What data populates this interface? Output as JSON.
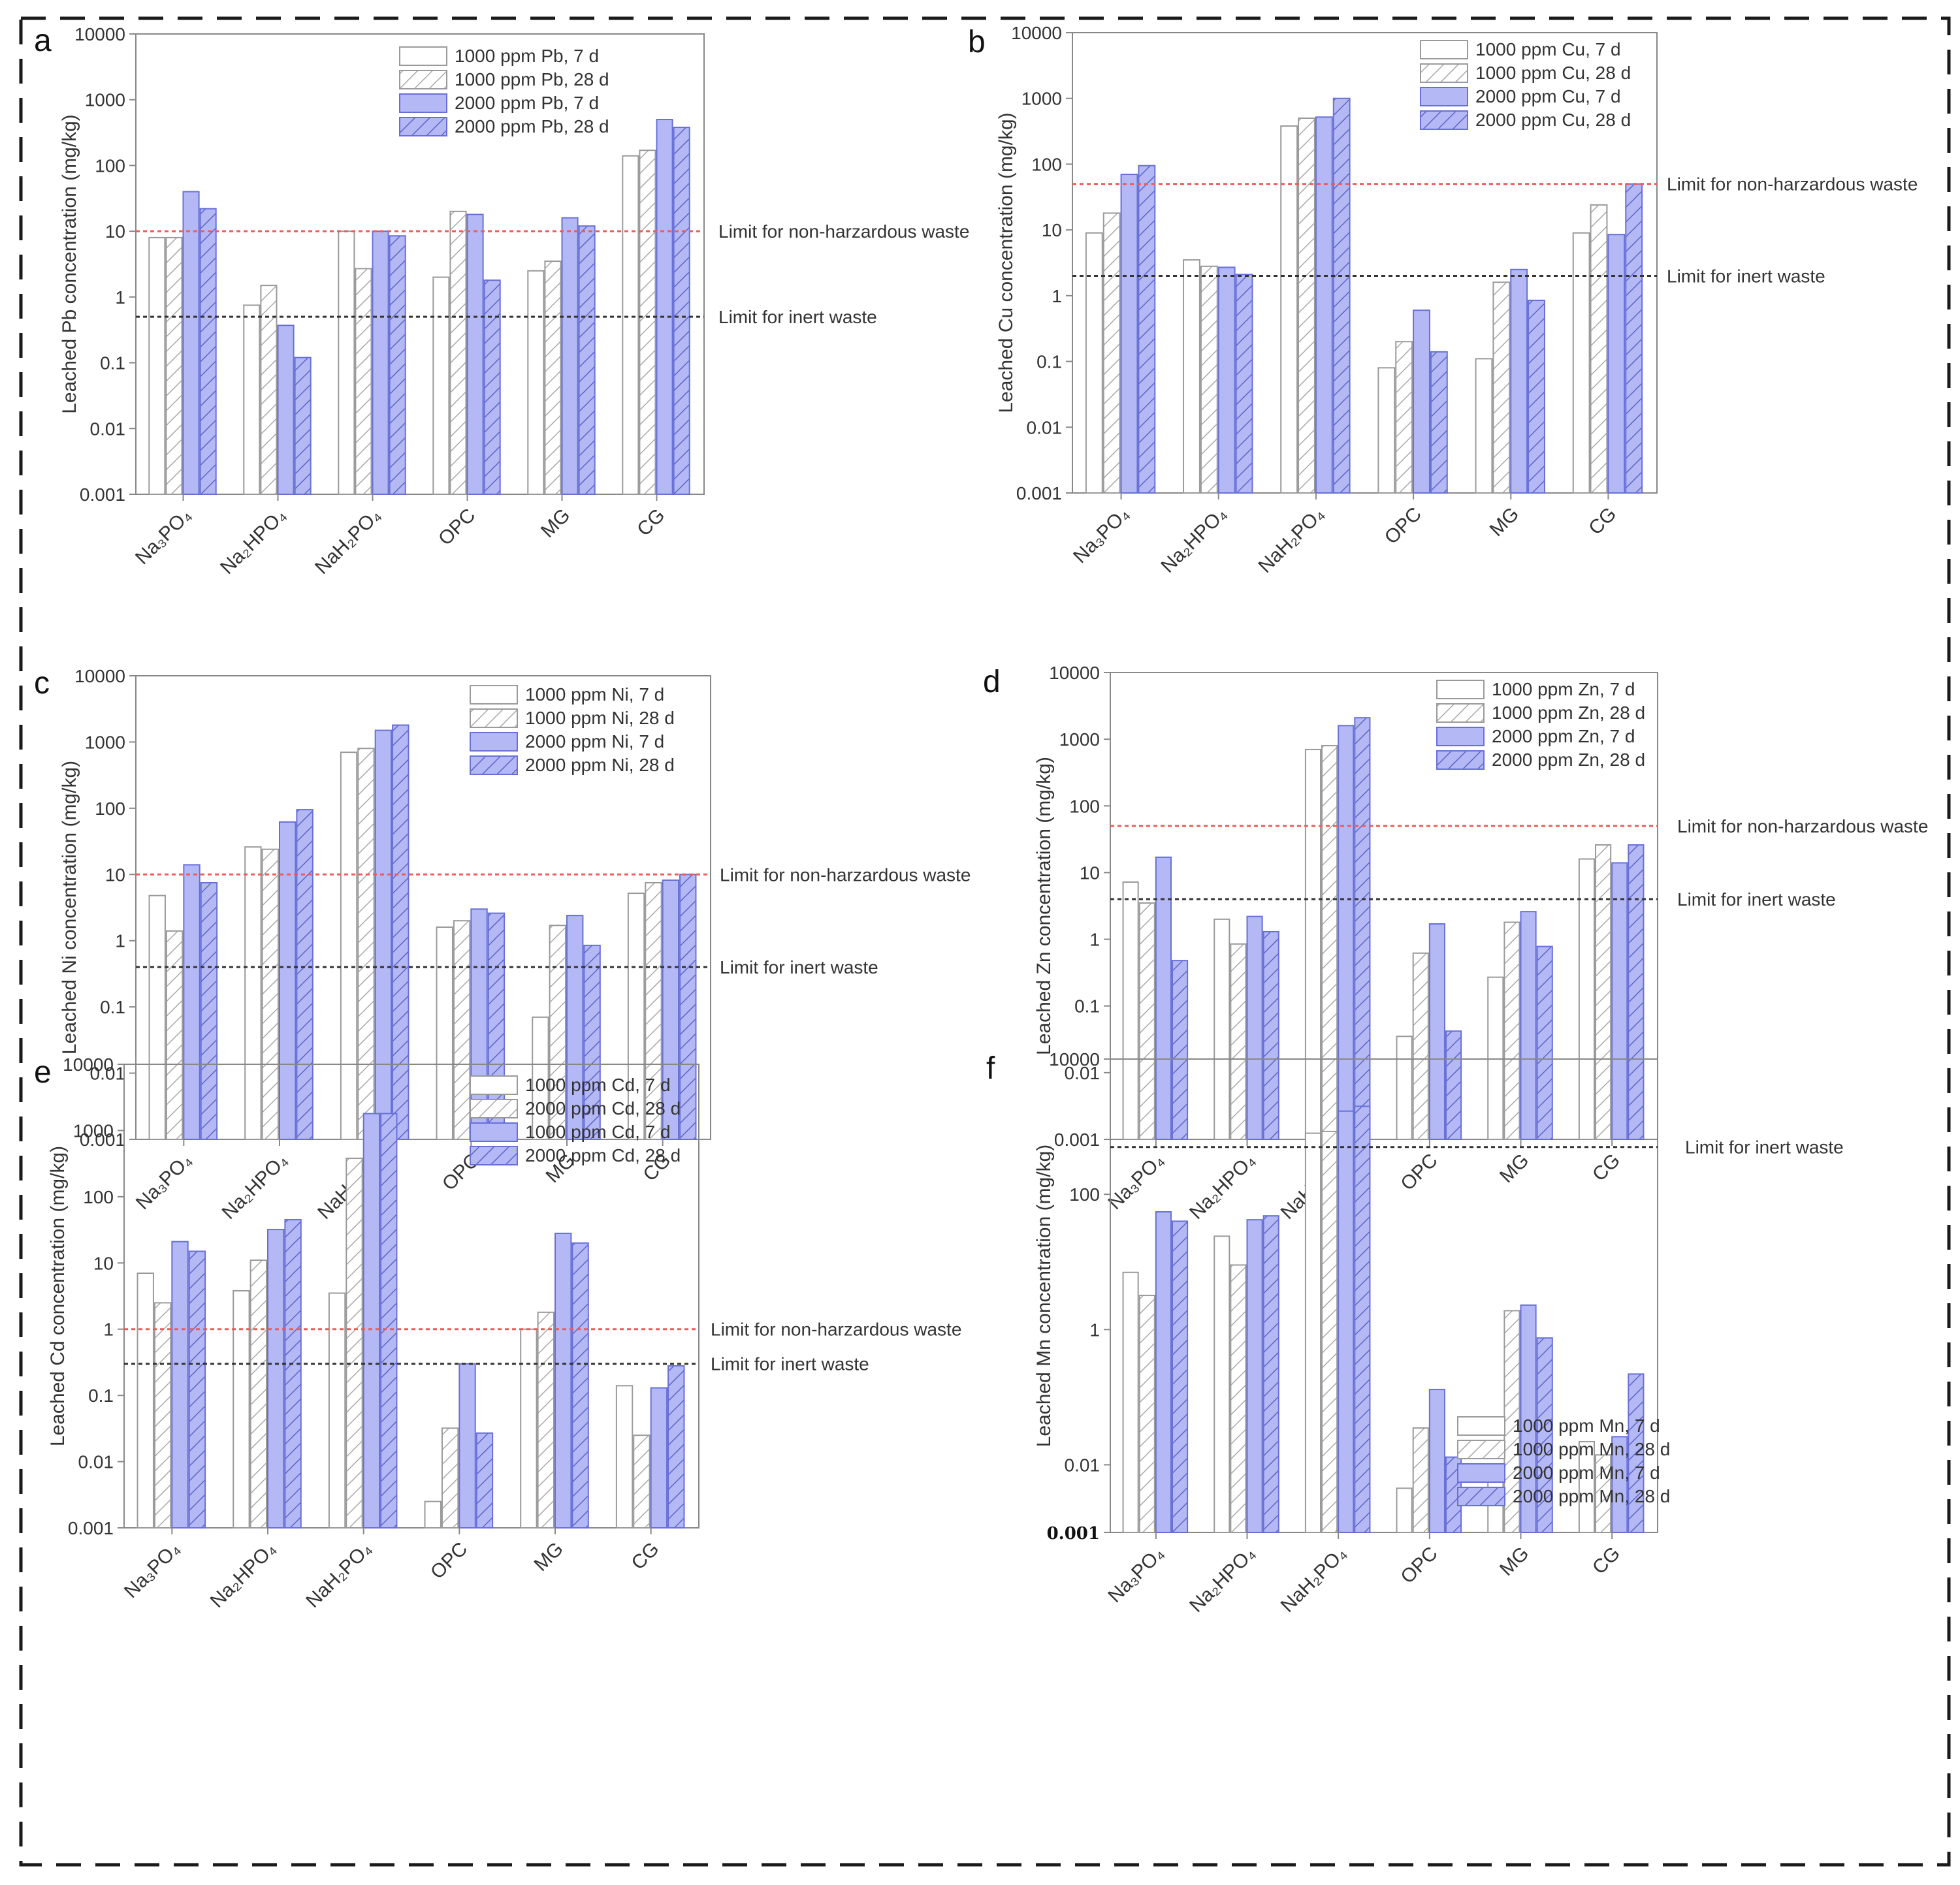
{
  "figure": {
    "colors": {
      "bar_fill_low": "#ffffff",
      "bar_fill_high": "#b4b9f6",
      "bar_stroke_low": "#9a9a9a",
      "bar_stroke_high": "#6870d8",
      "hatch_low": "#a8a8a8",
      "hatch_high": "#5d64c4",
      "limit_nonhaz": "#ef5a5a",
      "limit_inert": "#333333",
      "axis": "#888888",
      "border": "#1a1a1a"
    }
  },
  "chart_data": [
    {
      "panel": "a",
      "type": "bar",
      "yscale": "log",
      "ylabel": "Leached Pb concentration (mg/kg)",
      "ylim": [
        0.001,
        10000
      ],
      "yticks": [
        "0.001",
        "0.01",
        "0.1",
        "1",
        "10",
        "100",
        "1000",
        "10000"
      ],
      "categories": [
        "Na₃PO₄",
        "Na₂HPO₄",
        "NaH₂PO₄",
        "OPC",
        "MG",
        "CG"
      ],
      "series": [
        {
          "name": "1000 ppm Pb, 7 d",
          "values": [
            8,
            0.75,
            10,
            2,
            2.5,
            140
          ]
        },
        {
          "name": "1000 ppm Pb, 28 d",
          "values": [
            8,
            1.5,
            2.7,
            20,
            3.5,
            170
          ]
        },
        {
          "name": "2000 ppm Pb, 7 d",
          "values": [
            40,
            0.37,
            10,
            18,
            16,
            500
          ]
        },
        {
          "name": "2000 ppm Pb, 28 d",
          "values": [
            22,
            0.12,
            8.5,
            1.8,
            12,
            380
          ]
        }
      ],
      "limits": [
        {
          "label": "Limit for non-harzardous waste",
          "value": 10,
          "kind": "nonhaz"
        },
        {
          "label": "Limit for inert waste",
          "value": 0.5,
          "kind": "inert"
        }
      ]
    },
    {
      "panel": "b",
      "type": "bar",
      "yscale": "log",
      "ylabel": "Leached Cu concentration (mg/kg)",
      "ylim": [
        0.001,
        10000
      ],
      "yticks": [
        "0.001",
        "0.01",
        "0.1",
        "1",
        "10",
        "100",
        "1000",
        "10000"
      ],
      "categories": [
        "Na₃PO₄",
        "Na₂HPO₄",
        "NaH₂PO₄",
        "OPC",
        "MG",
        "CG"
      ],
      "series": [
        {
          "name": "1000 ppm Cu, 7 d",
          "values": [
            9,
            3.5,
            380,
            0.08,
            0.11,
            9
          ]
        },
        {
          "name": "1000 ppm Cu, 28 d",
          "values": [
            18,
            2.8,
            500,
            0.2,
            1.6,
            24
          ]
        },
        {
          "name": "2000 ppm Cu, 7 d",
          "values": [
            70,
            2.7,
            520,
            0.6,
            2.5,
            8.5
          ]
        },
        {
          "name": "2000 ppm Cu, 28 d",
          "values": [
            95,
            2.1,
            1000,
            0.14,
            0.85,
            50
          ]
        }
      ],
      "limits": [
        {
          "label": "Limit for non-harzardous waste",
          "value": 50,
          "kind": "nonhaz"
        },
        {
          "label": "Limit for inert waste",
          "value": 2,
          "kind": "inert"
        }
      ]
    },
    {
      "panel": "c",
      "type": "bar",
      "yscale": "log",
      "ylabel": "Leached Ni concentration (mg/kg)",
      "ylim": [
        0.001,
        10000
      ],
      "yticks": [
        "0.001",
        "0.01",
        "0.1",
        "1",
        "10",
        "100",
        "1000",
        "10000"
      ],
      "categories": [
        "Na₃PO₄",
        "Na₂HPO₄",
        "NaH₂PO₄",
        "OPC",
        "MG",
        "CG"
      ],
      "series": [
        {
          "name": "1000 ppm Ni, 7 d",
          "values": [
            4.8,
            26,
            700,
            1.6,
            0.07,
            5.2
          ]
        },
        {
          "name": "1000 ppm Ni, 28 d",
          "values": [
            1.4,
            24,
            800,
            2,
            1.7,
            7.5
          ]
        },
        {
          "name": "2000 ppm Ni, 7 d",
          "values": [
            14,
            62,
            1500,
            3,
            2.4,
            8.2
          ]
        },
        {
          "name": "2000 ppm Ni, 28 d",
          "values": [
            7.5,
            95,
            1800,
            2.6,
            0.85,
            10
          ]
        }
      ],
      "limits": [
        {
          "label": "Limit for non-harzardous waste",
          "value": 10,
          "kind": "nonhaz"
        },
        {
          "label": "Limit for inert waste",
          "value": 0.4,
          "kind": "inert"
        }
      ]
    },
    {
      "panel": "d",
      "type": "bar",
      "yscale": "log",
      "ylabel": "Leached Zn concentration (mg/kg)",
      "ylim": [
        0.001,
        10000
      ],
      "yticks": [
        "0.001",
        "0.01",
        "0.1",
        "1",
        "10",
        "100",
        "1000",
        "10000"
      ],
      "categories": [
        "Na₃PO₄",
        "Na₂HPO₄",
        "NaH₂PO₄",
        "OPC",
        "MG",
        "CG"
      ],
      "series": [
        {
          "name": "1000 ppm Zn, 7 d",
          "values": [
            7.2,
            2,
            700,
            0.035,
            0.27,
            16
          ]
        },
        {
          "name": "1000 ppm Zn, 28 d",
          "values": [
            3.5,
            0.85,
            800,
            0.62,
            1.8,
            26
          ]
        },
        {
          "name": "2000 ppm Zn, 7 d",
          "values": [
            17,
            2.2,
            1600,
            1.7,
            2.6,
            14
          ]
        },
        {
          "name": "2000 ppm Zn, 28 d",
          "values": [
            0.48,
            1.3,
            2100,
            0.042,
            0.78,
            26
          ]
        }
      ],
      "limits": [
        {
          "label": "Limit for non-harzardous waste",
          "value": 50,
          "kind": "nonhaz"
        },
        {
          "label": "Limit for inert waste",
          "value": 4,
          "kind": "inert"
        }
      ]
    },
    {
      "panel": "e",
      "type": "bar",
      "yscale": "log",
      "ylabel": "Leached Cd concentration (mg/kg)",
      "ylim": [
        0.001,
        10000
      ],
      "yticks": [
        "0.001",
        "0.01",
        "0.1",
        "1",
        "10",
        "100",
        "1000",
        "10000"
      ],
      "categories": [
        "Na₃PO₄",
        "Na₂HPO₄",
        "NaH₂PO₄",
        "OPC",
        "MG",
        "CG"
      ],
      "series": [
        {
          "name": "1000 ppm Cd, 7 d",
          "values": [
            7,
            3.8,
            3.5,
            0.0025,
            1,
            0.14
          ]
        },
        {
          "name": "2000 ppm Cd, 28 d",
          "values": [
            2.5,
            11,
            380,
            0.032,
            1.8,
            0.025
          ]
        },
        {
          "name": "1000 ppm Cd, 7 d",
          "values": [
            21,
            32,
            1800,
            0.3,
            28,
            0.13
          ]
        },
        {
          "name": "2000 ppm Cd, 28 d",
          "values": [
            15,
            45,
            1800,
            0.027,
            20,
            0.28
          ]
        }
      ],
      "limits": [
        {
          "label": "Limit for non-harzardous waste",
          "value": 1,
          "kind": "nonhaz"
        },
        {
          "label": "Limit for inert waste",
          "value": 0.3,
          "kind": "inert"
        }
      ]
    },
    {
      "panel": "f",
      "type": "bar",
      "yscale": "log",
      "ylabel": "Leached Mn concentration (mg/kg)",
      "ylim": [
        0.001,
        10000
      ],
      "yticks": [
        "0.001",
        "0.01",
        "1",
        "100",
        "10000"
      ],
      "yticks_values": [
        0.001,
        0.01,
        1,
        100,
        10000
      ],
      "categories": [
        "Na₃PO₄",
        "Na₂HPO₄",
        "NaH₂PO₄",
        "OPC",
        "MG",
        "CG"
      ],
      "series": [
        {
          "name": "1000 ppm Mn, 7 d",
          "values": [
            7,
            24,
            800,
            0.0045,
            0.0085,
            0.022
          ]
        },
        {
          "name": "1000 ppm Mn, 28 d",
          "values": [
            3.2,
            9,
            850,
            0.035,
            1.9,
            0.014
          ]
        },
        {
          "name": "2000 ppm Mn, 7 d",
          "values": [
            55,
            42,
            1700,
            0.13,
            2.3,
            0.026
          ]
        },
        {
          "name": "2000 ppm Mn, 28 d",
          "values": [
            40,
            48,
            2000,
            0.013,
            0.75,
            0.22
          ]
        }
      ],
      "limits": [
        {
          "label": "Limit for inert waste",
          "value": 500,
          "kind": "inert"
        }
      ]
    }
  ]
}
